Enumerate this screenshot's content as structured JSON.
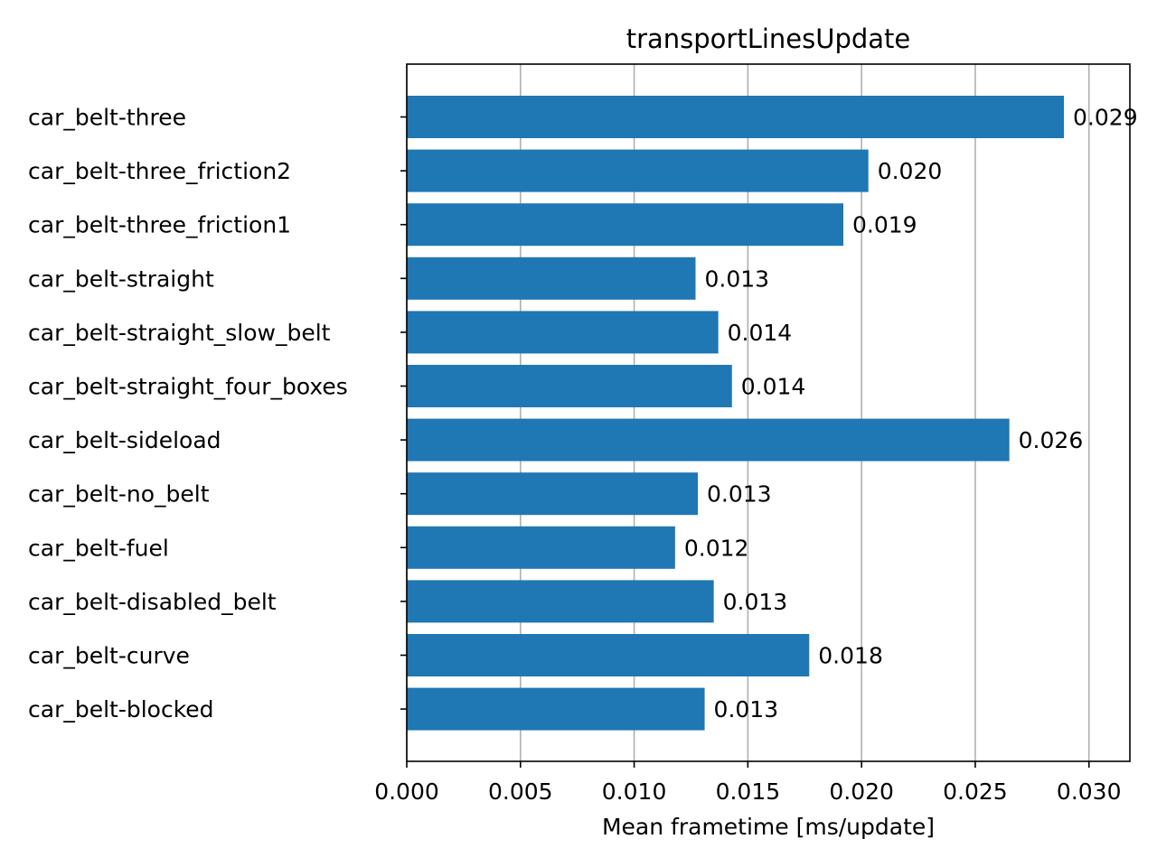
{
  "chart_data": {
    "type": "bar",
    "orientation": "horizontal",
    "title": "transportLinesUpdate",
    "xlabel": "Mean frametime [ms/update]",
    "ylabel": "",
    "xlim": [
      0,
      0.0318
    ],
    "xticks": [
      "0.000",
      "0.005",
      "0.010",
      "0.015",
      "0.020",
      "0.025",
      "0.030"
    ],
    "xtick_values": [
      0,
      0.005,
      0.01,
      0.015,
      0.02,
      0.025,
      0.03
    ],
    "grid": "x-major",
    "bar_color": "#1f77b4",
    "categories": [
      "car_belt-three",
      "car_belt-three_friction2",
      "car_belt-three_friction1",
      "car_belt-straight",
      "car_belt-straight_slow_belt",
      "car_belt-straight_four_boxes",
      "car_belt-sideload",
      "car_belt-no_belt",
      "car_belt-fuel",
      "car_belt-disabled_belt",
      "car_belt-curve",
      "car_belt-blocked"
    ],
    "values": [
      0.0289,
      0.0203,
      0.0192,
      0.0127,
      0.0137,
      0.0143,
      0.0265,
      0.0128,
      0.0118,
      0.0135,
      0.0177,
      0.0131
    ],
    "data_labels": [
      "0.029",
      "0.020",
      "0.019",
      "0.013",
      "0.014",
      "0.014",
      "0.026",
      "0.013",
      "0.012",
      "0.013",
      "0.018",
      "0.013"
    ]
  }
}
